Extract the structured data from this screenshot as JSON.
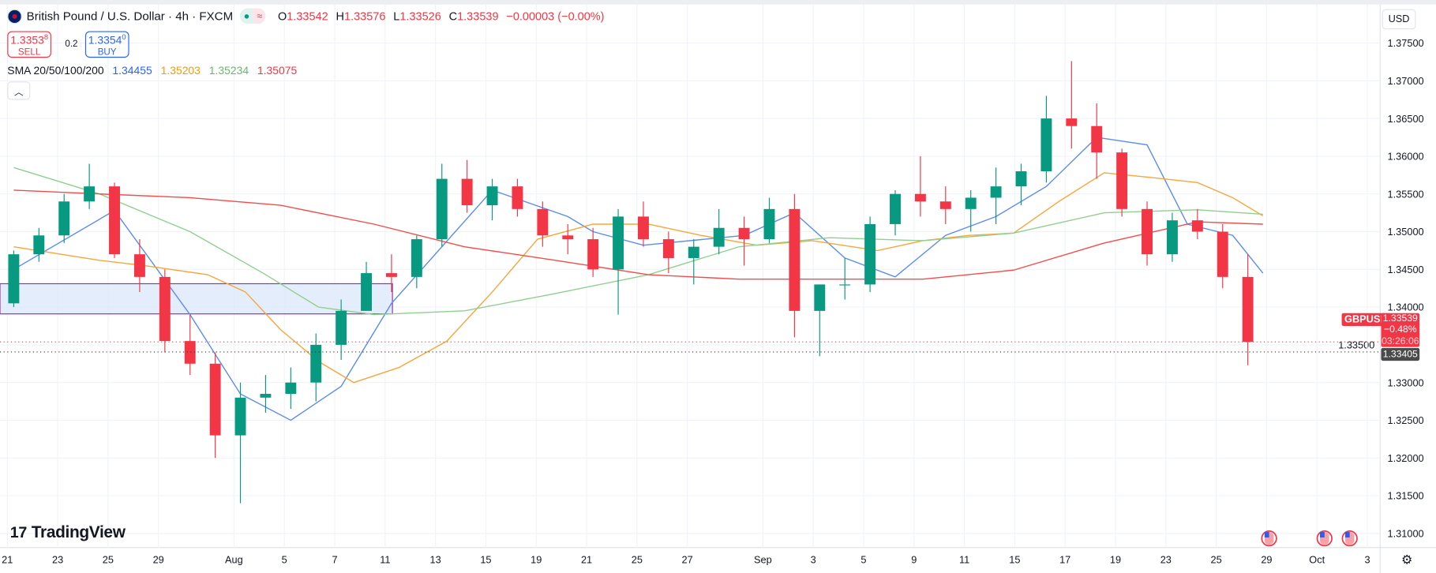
{
  "header": {
    "title": "British Pound / U.S. Dollar · 4h · FXCM",
    "market_open_icon": "green-dot",
    "ohlc": {
      "o_label": "O",
      "o": "1.33542",
      "h_label": "H",
      "h": "1.33576",
      "l_label": "L",
      "l": "1.33526",
      "c_label": "C",
      "c": "1.33539",
      "change": "−0.00003 (−0.00%)"
    }
  },
  "trade": {
    "sell_price": "1.3353",
    "sell_sup": "8",
    "sell_label": "SELL",
    "spread": "0.2",
    "buy_price": "1.3354",
    "buy_sup": "0",
    "buy_label": "BUY"
  },
  "indicator": {
    "label": "SMA 20/50/100/200",
    "v20": "1.34455",
    "v50": "1.35203",
    "v100": "1.35234",
    "v200": "1.35075"
  },
  "currency_button": "USD",
  "logo": "TradingView",
  "price_labels": {
    "symbol": "GBPUSD",
    "last": "1.33539",
    "change_pct": "−0.48%",
    "countdown": "03:26:06",
    "low": "1.33405"
  },
  "colors": {
    "up": "#089981",
    "down": "#f23645",
    "sma20": "#5b8def",
    "sma50": "#f7a63c",
    "sma100": "#8fcf8f",
    "sma200": "#f24c4c",
    "zone_fill": "#dce8fb",
    "zone_border": "#9c27b0"
  },
  "chart_data": {
    "type": "candlestick",
    "ylim": [
      1.3085,
      1.3775
    ],
    "y_ticks": [
      "1.37500",
      "1.37000",
      "1.36500",
      "1.36000",
      "1.35500",
      "1.35000",
      "1.34500",
      "1.34000",
      "1.33500",
      "1.33000",
      "1.32500",
      "1.32000",
      "1.31500",
      "1.31000"
    ],
    "x_ticks": [
      [
        "21",
        0
      ],
      [
        "23",
        2
      ],
      [
        "25",
        4
      ],
      [
        "29",
        6
      ],
      [
        "Aug",
        9
      ],
      [
        "5",
        11
      ],
      [
        "7",
        13
      ],
      [
        "11",
        15
      ],
      [
        "13",
        17
      ],
      [
        "15",
        19
      ],
      [
        "19",
        21
      ],
      [
        "21",
        23
      ],
      [
        "25",
        25
      ],
      [
        "27",
        27
      ],
      [
        "Sep",
        30
      ],
      [
        "3",
        32
      ],
      [
        "5",
        34
      ],
      [
        "9",
        36
      ],
      [
        "11",
        38
      ],
      [
        "15",
        40
      ],
      [
        "17",
        42
      ],
      [
        "19",
        44
      ],
      [
        "23",
        46
      ],
      [
        "25",
        48
      ],
      [
        "29",
        50
      ],
      [
        "Oct",
        52
      ],
      [
        "3",
        54
      ]
    ],
    "days": [
      "Jul 21",
      "Jul 22",
      "Jul 23",
      "Jul 24",
      "Jul 25",
      "Jul 28",
      "Jul 29",
      "Jul 30",
      "Jul 31",
      "Aug 1",
      "Aug 4",
      "Aug 5",
      "Aug 6",
      "Aug 7",
      "Aug 8",
      "Aug 11",
      "Aug 12",
      "Aug 13",
      "Aug 14",
      "Aug 15",
      "Aug 18",
      "Aug 19",
      "Aug 20",
      "Aug 21",
      "Aug 22",
      "Aug 25",
      "Aug 26",
      "Aug 27",
      "Aug 28",
      "Aug 29",
      "Sep 1",
      "Sep 2",
      "Sep 3",
      "Sep 4",
      "Sep 5",
      "Sep 8",
      "Sep 9",
      "Sep 10",
      "Sep 11",
      "Sep 12",
      "Sep 15",
      "Sep 16",
      "Sep 17",
      "Sep 18",
      "Sep 19",
      "Sep 22",
      "Sep 23",
      "Sep 24",
      "Sep 25",
      "Sep 26"
    ],
    "ohlc": [
      [
        1.3405,
        1.3475,
        1.34,
        1.347
      ],
      [
        1.347,
        1.3505,
        1.346,
        1.3495
      ],
      [
        1.3495,
        1.355,
        1.3485,
        1.354
      ],
      [
        1.354,
        1.359,
        1.353,
        1.356
      ],
      [
        1.356,
        1.3565,
        1.3465,
        1.347
      ],
      [
        1.347,
        1.349,
        1.342,
        1.344
      ],
      [
        1.344,
        1.345,
        1.334,
        1.3355
      ],
      [
        1.3355,
        1.339,
        1.331,
        1.3325
      ],
      [
        1.3325,
        1.334,
        1.32,
        1.323
      ],
      [
        1.323,
        1.33,
        1.314,
        1.328
      ],
      [
        1.328,
        1.331,
        1.326,
        1.3285
      ],
      [
        1.3285,
        1.332,
        1.3265,
        1.33
      ],
      [
        1.33,
        1.3365,
        1.3275,
        1.335
      ],
      [
        1.335,
        1.341,
        1.333,
        1.3395
      ],
      [
        1.3395,
        1.346,
        1.34,
        1.3445
      ],
      [
        1.3445,
        1.347,
        1.342,
        1.344
      ],
      [
        1.344,
        1.3495,
        1.3425,
        1.349
      ],
      [
        1.349,
        1.359,
        1.348,
        1.357
      ],
      [
        1.357,
        1.3595,
        1.3525,
        1.3535
      ],
      [
        1.3535,
        1.357,
        1.3515,
        1.356
      ],
      [
        1.356,
        1.357,
        1.352,
        1.353
      ],
      [
        1.353,
        1.354,
        1.348,
        1.3495
      ],
      [
        1.3495,
        1.351,
        1.347,
        1.349
      ],
      [
        1.349,
        1.3505,
        1.344,
        1.345
      ],
      [
        1.345,
        1.353,
        1.339,
        1.352
      ],
      [
        1.352,
        1.354,
        1.348,
        1.349
      ],
      [
        1.349,
        1.35,
        1.3445,
        1.3465
      ],
      [
        1.3465,
        1.349,
        1.343,
        1.348
      ],
      [
        1.348,
        1.353,
        1.347,
        1.3505
      ],
      [
        1.3505,
        1.352,
        1.3455,
        1.349
      ],
      [
        1.349,
        1.3545,
        1.3485,
        1.353
      ],
      [
        1.353,
        1.355,
        1.336,
        1.3395
      ],
      [
        1.3395,
        1.343,
        1.3335,
        1.343
      ],
      [
        1.343,
        1.3465,
        1.341,
        1.343
      ],
      [
        1.343,
        1.352,
        1.342,
        1.351
      ],
      [
        1.351,
        1.3555,
        1.3495,
        1.355
      ],
      [
        1.355,
        1.36,
        1.352,
        1.354
      ],
      [
        1.354,
        1.356,
        1.351,
        1.353
      ],
      [
        1.353,
        1.3555,
        1.35,
        1.3545
      ],
      [
        1.3545,
        1.3585,
        1.351,
        1.356
      ],
      [
        1.356,
        1.359,
        1.3535,
        1.358
      ],
      [
        1.358,
        1.368,
        1.3565,
        1.365
      ],
      [
        1.365,
        1.3726,
        1.361,
        1.364
      ],
      [
        1.364,
        1.367,
        1.357,
        1.3605
      ],
      [
        1.3605,
        1.361,
        1.352,
        1.353
      ],
      [
        1.353,
        1.354,
        1.3455,
        1.347
      ],
      [
        1.347,
        1.3525,
        1.346,
        1.3515
      ],
      [
        1.3515,
        1.353,
        1.349,
        1.35
      ],
      [
        1.35,
        1.351,
        1.3425,
        1.344
      ],
      [
        1.344,
        1.347,
        1.3323,
        1.3354
      ]
    ],
    "sma": [
      {
        "name": "SMA 20",
        "color": "#5b8def",
        "points": [
          [
            0,
            1.345
          ],
          [
            4,
            1.3528
          ],
          [
            7,
            1.339
          ],
          [
            9,
            1.3285
          ],
          [
            11,
            1.325
          ],
          [
            13,
            1.3295
          ],
          [
            15,
            1.3405
          ],
          [
            17,
            1.348
          ],
          [
            19,
            1.3555
          ],
          [
            22,
            1.352
          ],
          [
            23,
            1.35
          ],
          [
            25,
            1.3482
          ],
          [
            29,
            1.3495
          ],
          [
            31,
            1.3525
          ],
          [
            33,
            1.3465
          ],
          [
            35,
            1.344
          ],
          [
            37,
            1.3495
          ],
          [
            39,
            1.352
          ],
          [
            41,
            1.356
          ],
          [
            43,
            1.3625
          ],
          [
            45,
            1.3615
          ],
          [
            46.6,
            1.351
          ],
          [
            48.4,
            1.3495
          ],
          [
            49.6,
            1.3445
          ]
        ]
      },
      {
        "name": "SMA 50",
        "color": "#f7a63c",
        "points": [
          [
            0,
            1.348
          ],
          [
            3.4,
            1.3462
          ],
          [
            5.2,
            1.3455
          ],
          [
            7.7,
            1.3443
          ],
          [
            9.2,
            1.342
          ],
          [
            10.6,
            1.337
          ],
          [
            12.1,
            1.3328
          ],
          [
            13.5,
            1.33
          ],
          [
            15.3,
            1.332
          ],
          [
            17.2,
            1.3355
          ],
          [
            19,
            1.342
          ],
          [
            20.8,
            1.349
          ],
          [
            23,
            1.351
          ],
          [
            25.2,
            1.351
          ],
          [
            27.3,
            1.3495
          ],
          [
            29.5,
            1.3482
          ],
          [
            31.7,
            1.3488
          ],
          [
            34.3,
            1.3475
          ],
          [
            36.1,
            1.3488
          ],
          [
            37.9,
            1.3495
          ],
          [
            39.7,
            1.3498
          ],
          [
            41.5,
            1.354
          ],
          [
            43.3,
            1.3578
          ],
          [
            45.1,
            1.3572
          ],
          [
            47,
            1.3565
          ],
          [
            48.4,
            1.3545
          ],
          [
            49.6,
            1.3521
          ]
        ]
      },
      {
        "name": "SMA 100",
        "color": "#8fcf8f",
        "points": [
          [
            0,
            1.3585
          ],
          [
            3.4,
            1.355
          ],
          [
            7,
            1.35
          ],
          [
            9.9,
            1.3445
          ],
          [
            12.1,
            1.34
          ],
          [
            14.3,
            1.339
          ],
          [
            17.9,
            1.3395
          ],
          [
            21.5,
            1.3418
          ],
          [
            25.2,
            1.3443
          ],
          [
            28.8,
            1.348
          ],
          [
            32.4,
            1.3492
          ],
          [
            36.1,
            1.3488
          ],
          [
            39.7,
            1.3498
          ],
          [
            43.3,
            1.3525
          ],
          [
            47,
            1.3529
          ],
          [
            49.6,
            1.3523
          ]
        ]
      },
      {
        "name": "SMA 200",
        "color": "#f24c4c",
        "points": [
          [
            0,
            1.3555
          ],
          [
            3.4,
            1.355
          ],
          [
            7,
            1.3545
          ],
          [
            10.6,
            1.3535
          ],
          [
            14.3,
            1.351
          ],
          [
            17.9,
            1.348
          ],
          [
            21.5,
            1.3462
          ],
          [
            25.2,
            1.3443
          ],
          [
            28.8,
            1.3437
          ],
          [
            32.4,
            1.3437
          ],
          [
            36.1,
            1.3437
          ],
          [
            39.7,
            1.3449
          ],
          [
            43.3,
            1.3485
          ],
          [
            47,
            1.3513
          ],
          [
            49.6,
            1.351
          ]
        ]
      }
    ],
    "zone": {
      "from": "Jul 21",
      "to": "Aug 11",
      "top": 1.3431,
      "bottom": 1.3391
    },
    "hlines": [
      {
        "price": 1.33539,
        "color": "#f23645"
      },
      {
        "price": 1.33405,
        "color": "#333333"
      }
    ],
    "events": [
      {
        "day": 50.1,
        "icon": "us-flag-event-icon"
      },
      {
        "day": 52.3,
        "icon": "us-flag-event-icon"
      },
      {
        "day": 53.3,
        "icon": "us-flag-event-icon"
      }
    ]
  }
}
